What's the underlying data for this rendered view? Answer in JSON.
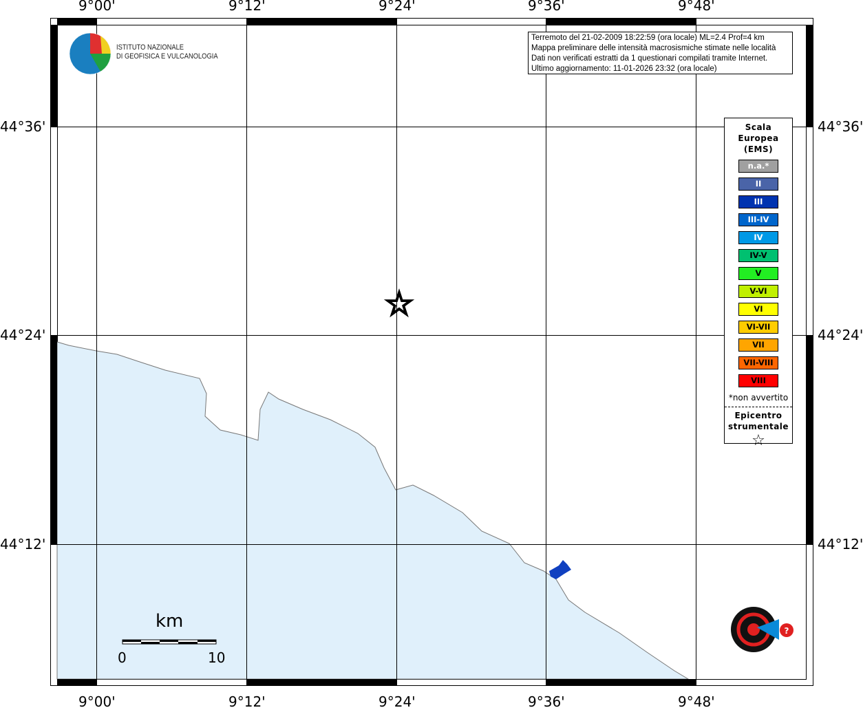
{
  "map": {
    "lon_labels": [
      "9°00'",
      "9°12'",
      "9°24'",
      "9°36'",
      "9°48'"
    ],
    "lat_labels": [
      "44°36'",
      "44°24'",
      "44°12'"
    ],
    "sea_color": "#e0f0fb",
    "epicenter_icon": "star-icon"
  },
  "info": {
    "lines": [
      "Terremoto del 21-02-2009 18:22:59 (ora locale) ML=2.4 Prof=4 km",
      "Mappa preliminare delle intensità macrosismiche stimate nelle località",
      "Dati non verificati estratti da 1 questionari compilati tramite Internet.",
      "Ultimo aggiornamento: 11-01-2026 23:32 (ora locale)"
    ]
  },
  "logo_ingv": {
    "line1": "ISTITUTO NAZIONALE",
    "line2": "DI GEOFISICA E VULCANOLOGIA"
  },
  "logo_hst": "www.haisentitoilterremoto.it",
  "legend": {
    "title": [
      "Scala",
      "Europea",
      "(EMS)"
    ],
    "items": [
      {
        "label": "n.a.*",
        "color": "#a0a0a0",
        "text": "#fff"
      },
      {
        "label": "II",
        "color": "#4a64a8",
        "text": "#fff"
      },
      {
        "label": "III",
        "color": "#0033b0",
        "text": "#fff"
      },
      {
        "label": "III-IV",
        "color": "#0066cc",
        "text": "#fff"
      },
      {
        "label": "IV",
        "color": "#0099e6",
        "text": "#fff"
      },
      {
        "label": "IV-V",
        "color": "#00c070",
        "text": "#000"
      },
      {
        "label": "V",
        "color": "#22ee22",
        "text": "#000"
      },
      {
        "label": "V-VI",
        "color": "#c0f000",
        "text": "#000"
      },
      {
        "label": "VI",
        "color": "#ffff00",
        "text": "#000"
      },
      {
        "label": "VI-VII",
        "color": "#ffcc00",
        "text": "#000"
      },
      {
        "label": "VII",
        "color": "#ffa500",
        "text": "#000"
      },
      {
        "label": "VII-VIII",
        "color": "#ff6600",
        "text": "#000"
      },
      {
        "label": "VIII",
        "color": "#ff0000",
        "text": "#000"
      }
    ],
    "note": "*non avvertito",
    "epicenter": [
      "Epicentro",
      "strumentale"
    ]
  },
  "scale": {
    "unit": "km",
    "min": "0",
    "max": "10"
  }
}
